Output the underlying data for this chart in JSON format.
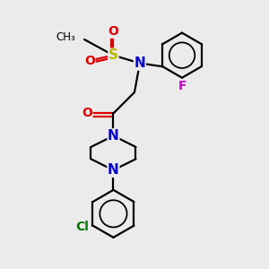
{
  "bg_color": "#ebebeb",
  "bond_color": "#000000",
  "N_color": "#0000cc",
  "O_color": "#dd0000",
  "S_color": "#bbbb00",
  "F_color": "#cc00cc",
  "Cl_color": "#007700",
  "line_width": 1.6,
  "fig_w": 3.0,
  "fig_h": 3.0,
  "dpi": 100,
  "xlim": [
    0,
    10
  ],
  "ylim": [
    0,
    10
  ]
}
